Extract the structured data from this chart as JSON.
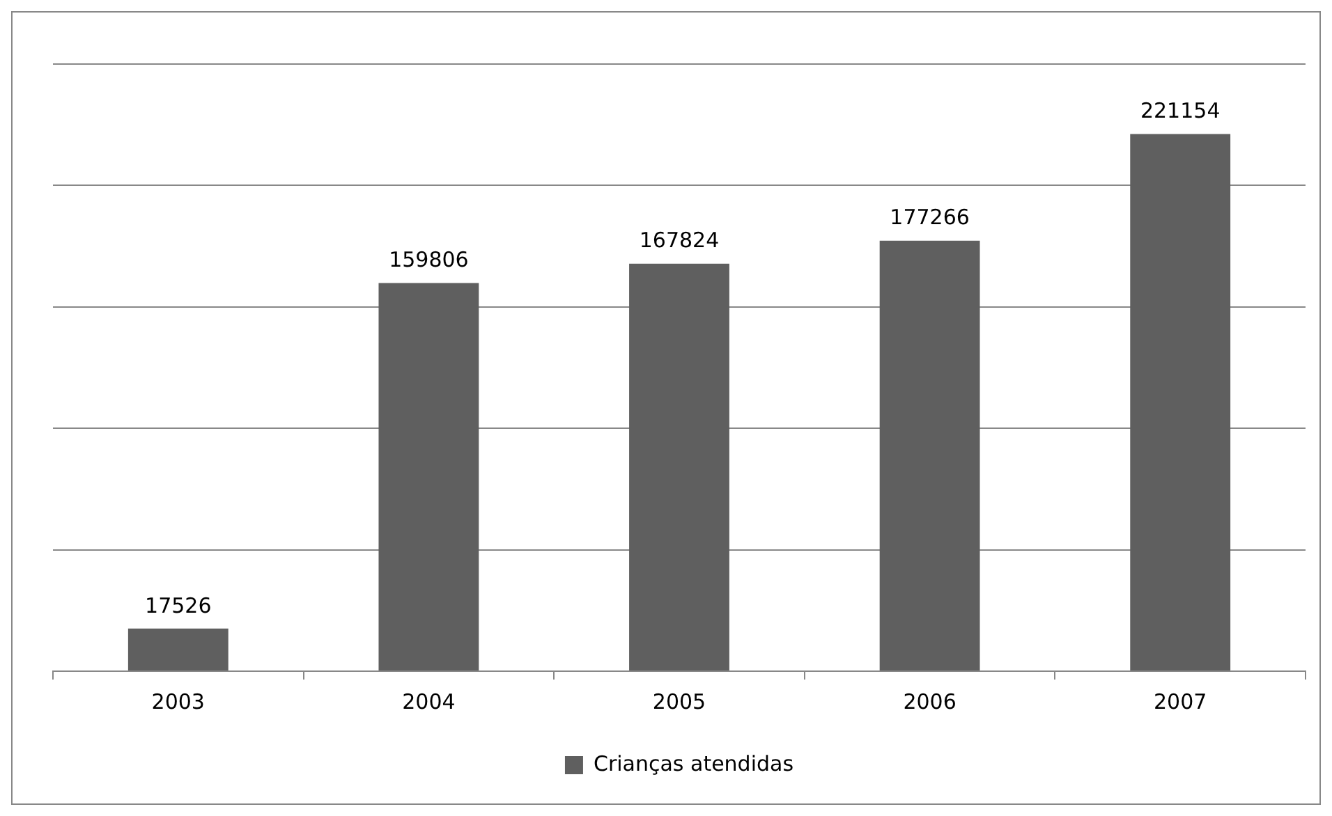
{
  "chart_data": {
    "type": "bar",
    "categories": [
      "2003",
      "2004",
      "2005",
      "2006",
      "2007"
    ],
    "series": [
      {
        "name": "Crianças atendidas",
        "color": "#5f5f5f",
        "values": [
          17526,
          159806,
          167824,
          177266,
          221154
        ]
      }
    ],
    "ylim": [
      0,
      250000
    ],
    "yticks": [
      {
        "value": 0,
        "label": null
      },
      {
        "value": 50000,
        "label": null
      },
      {
        "value": 100000,
        "label": null
      },
      {
        "value": 150000,
        "label": null
      },
      {
        "value": 200000,
        "label": null
      },
      {
        "value": 250000,
        "label": null
      }
    ],
    "tick_labels": "x",
    "grid": "y",
    "legend": "bottom",
    "data_labels": true
  }
}
